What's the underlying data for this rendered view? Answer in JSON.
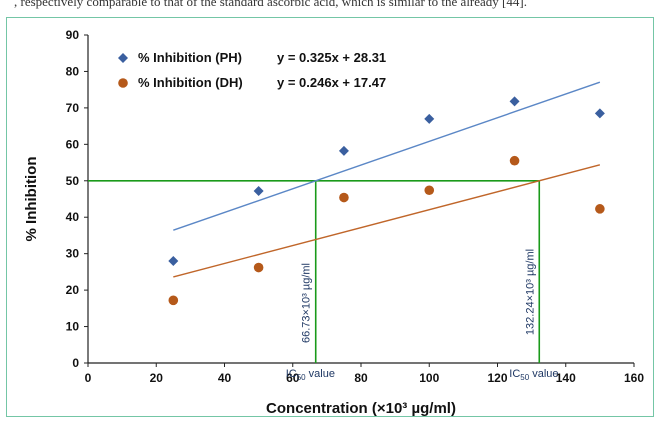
{
  "top_text": ", respectively comparable to that of the standard ascorbic acid, which is similar to the already [44].",
  "chart_data": {
    "type": "scatter",
    "title": "",
    "xlabel": "Concentration (×10³ µg/ml)",
    "ylabel": "% Inhibition",
    "xlim": [
      0,
      160
    ],
    "ylim": [
      0,
      90
    ],
    "x_ticks": [
      "0",
      "20",
      "40",
      "60",
      "80",
      "100",
      "120",
      "140",
      "160"
    ],
    "y_ticks": [
      "0",
      "10",
      "20",
      "30",
      "40",
      "50",
      "60",
      "70",
      "80",
      "90"
    ],
    "grid": false,
    "legend_position": "top-left",
    "x": [
      25,
      50,
      75,
      100,
      125,
      150
    ],
    "series": [
      {
        "name": "% Inhibition (PH)",
        "marker": "diamond",
        "color": "#3a5f9f",
        "trend_color": "#5b87c6",
        "values": [
          28,
          47.2,
          58.2,
          67,
          71.8,
          68.5
        ],
        "equation": "y = 0.325x + 28.31",
        "slope": 0.325,
        "intercept": 28.31,
        "ic50_label": "66.73×10³ µg/ml",
        "ic50_x": 66.73
      },
      {
        "name": "% Inhibition (DH)",
        "marker": "circle",
        "color": "#b5591a",
        "trend_color": "#c0662a",
        "values": [
          17.2,
          26.2,
          45.4,
          47.4,
          55.5,
          42.3
        ],
        "equation": "y = 0.246x + 17.47",
        "slope": 0.246,
        "intercept": 17.47,
        "ic50_label": "132.24×10³ µg/ml",
        "ic50_x": 132.24
      }
    ],
    "reference_line": {
      "y": 50,
      "color": "#1a9a1a"
    },
    "ic50_text": "IC50 value"
  }
}
